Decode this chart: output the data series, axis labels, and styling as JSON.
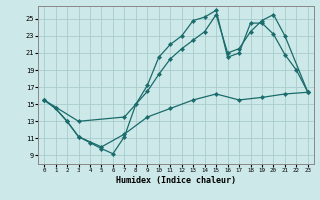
{
  "xlabel": "Humidex (Indice chaleur)",
  "bg_color": "#cde8e8",
  "grid_color": "#aacccc",
  "line_color": "#1a6b6b",
  "xlim": [
    -0.5,
    23.5
  ],
  "ylim": [
    8.0,
    26.5
  ],
  "xticks": [
    0,
    1,
    2,
    3,
    4,
    5,
    6,
    7,
    8,
    9,
    10,
    11,
    12,
    13,
    14,
    15,
    16,
    17,
    18,
    19,
    20,
    21,
    22,
    23
  ],
  "yticks": [
    9,
    11,
    13,
    15,
    17,
    19,
    21,
    23,
    25
  ],
  "line1_x": [
    0,
    1,
    2,
    3,
    4,
    5,
    6,
    7,
    8,
    9,
    10,
    11,
    12,
    13,
    14,
    15,
    16,
    17,
    18,
    19,
    20,
    21,
    22,
    23
  ],
  "line1_y": [
    15.5,
    14.5,
    13.0,
    11.2,
    10.5,
    9.8,
    9.2,
    11.2,
    15.0,
    17.2,
    20.5,
    22.0,
    23.0,
    24.8,
    25.2,
    26.0,
    20.5,
    21.0,
    24.5,
    24.5,
    23.2,
    20.8,
    19.0,
    16.4
  ],
  "line2_x": [
    0,
    3,
    7,
    9,
    10,
    11,
    12,
    13,
    14,
    15,
    16,
    17,
    18,
    19,
    20,
    21,
    23
  ],
  "line2_y": [
    15.5,
    13.0,
    13.5,
    16.5,
    18.5,
    20.3,
    21.5,
    22.5,
    23.5,
    25.5,
    21.0,
    21.5,
    23.5,
    24.8,
    25.5,
    23.0,
    16.4
  ],
  "line3_x": [
    0,
    1,
    2,
    3,
    5,
    7,
    9,
    11,
    13,
    15,
    17,
    19,
    21,
    23
  ],
  "line3_y": [
    15.5,
    14.5,
    13.0,
    11.2,
    10.0,
    11.5,
    13.5,
    14.5,
    15.5,
    16.2,
    15.5,
    15.8,
    16.2,
    16.4
  ]
}
